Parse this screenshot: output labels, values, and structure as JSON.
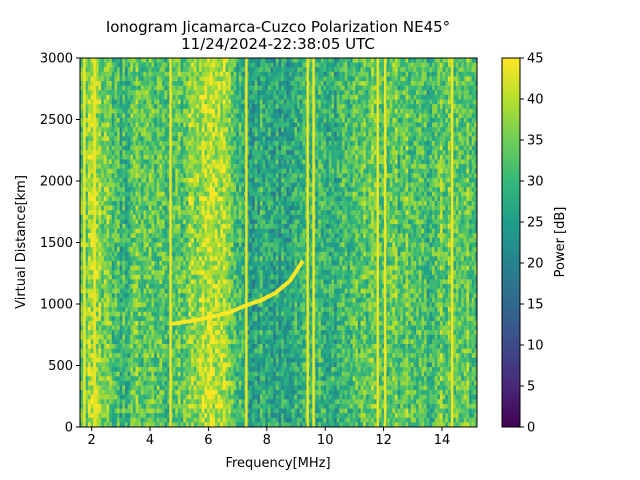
{
  "chart_data": {
    "type": "heatmap",
    "title": "Ionogram Jicamarca-Cuzco Polarization NE45°",
    "subtitle": "11/24/2024-22:38:05 UTC",
    "xlabel": "Frequency[MHz]",
    "ylabel": "Virtual Distance[km]",
    "colorbar_label": "Power [dB]",
    "colormap": "viridis",
    "xlim": [
      1.6,
      15.2
    ],
    "ylim": [
      0,
      3000
    ],
    "clim": [
      0,
      45
    ],
    "x_ticks": [
      2,
      4,
      6,
      8,
      10,
      12,
      14
    ],
    "y_ticks": [
      0,
      500,
      1000,
      1500,
      2000,
      2500,
      3000
    ],
    "colorbar_ticks": [
      0,
      5,
      10,
      15,
      20,
      25,
      30,
      35,
      40,
      45
    ],
    "background_power_profile": [
      {
        "f": 1.6,
        "db": 33
      },
      {
        "f": 2.0,
        "db": 38
      },
      {
        "f": 2.5,
        "db": 35
      },
      {
        "f": 3.0,
        "db": 30
      },
      {
        "f": 3.5,
        "db": 33
      },
      {
        "f": 4.0,
        "db": 36
      },
      {
        "f": 4.5,
        "db": 30
      },
      {
        "f": 5.0,
        "db": 33
      },
      {
        "f": 5.5,
        "db": 38
      },
      {
        "f": 6.0,
        "db": 43
      },
      {
        "f": 6.5,
        "db": 41
      },
      {
        "f": 7.0,
        "db": 30
      },
      {
        "f": 7.5,
        "db": 27
      },
      {
        "f": 8.0,
        "db": 29
      },
      {
        "f": 8.5,
        "db": 26
      },
      {
        "f": 9.0,
        "db": 27
      },
      {
        "f": 9.5,
        "db": 33
      },
      {
        "f": 10.0,
        "db": 28
      },
      {
        "f": 10.5,
        "db": 29
      },
      {
        "f": 11.0,
        "db": 31
      },
      {
        "f": 11.5,
        "db": 33
      },
      {
        "f": 12.0,
        "db": 35
      },
      {
        "f": 12.5,
        "db": 33
      },
      {
        "f": 13.0,
        "db": 34
      },
      {
        "f": 13.5,
        "db": 30
      },
      {
        "f": 14.0,
        "db": 33
      },
      {
        "f": 14.5,
        "db": 35
      },
      {
        "f": 15.2,
        "db": 32
      }
    ],
    "interference_lines_mhz": [
      1.75,
      2.1,
      4.7,
      7.3,
      9.4,
      9.6,
      11.8,
      12.05,
      14.35
    ],
    "ionospheric_trace": [
      {
        "f": 4.8,
        "km": 840
      },
      {
        "f": 5.5,
        "km": 865
      },
      {
        "f": 6.2,
        "km": 900
      },
      {
        "f": 6.8,
        "km": 940
      },
      {
        "f": 7.3,
        "km": 990
      },
      {
        "f": 7.8,
        "km": 1030
      },
      {
        "f": 8.3,
        "km": 1090
      },
      {
        "f": 8.8,
        "km": 1190
      },
      {
        "f": 9.2,
        "km": 1340
      }
    ],
    "trace_power_db": 45
  }
}
